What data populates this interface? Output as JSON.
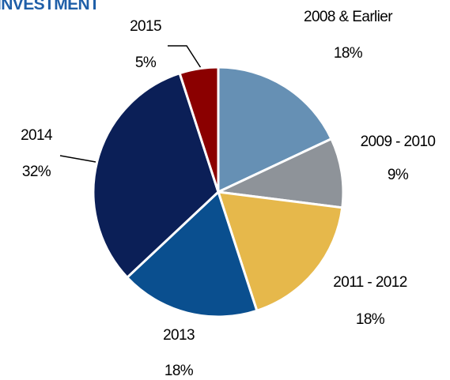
{
  "chart_data": {
    "type": "pie",
    "title": "INVESTMENT",
    "categories": [
      "2008 & Earlier",
      "2009 - 2010",
      "2011 - 2012",
      "2013",
      "2014",
      "2015"
    ],
    "values": [
      18,
      9,
      18,
      18,
      32,
      5
    ],
    "value_labels": [
      "18%",
      "9%",
      "18%",
      "18%",
      "32%",
      "5%"
    ],
    "colors": [
      "#6690b4",
      "#8e9399",
      "#e6b84b",
      "#0a4f8f",
      "#0b1f57",
      "#8b0000"
    ]
  }
}
